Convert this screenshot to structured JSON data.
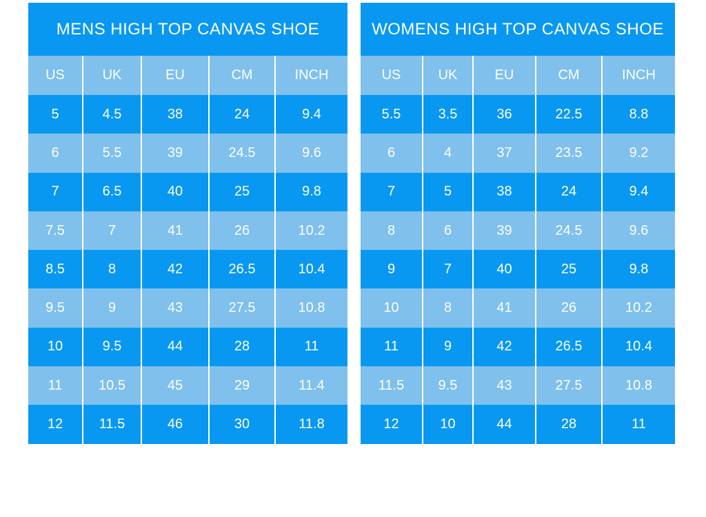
{
  "colors": {
    "row_dark": "#0998f1",
    "row_light": "#7fc0ec",
    "text": "#ffffff",
    "background": "#ffffff"
  },
  "tables": [
    {
      "title": "MENS HIGH TOP CANVAS SHOE",
      "columns": [
        "US",
        "UK",
        "EU",
        "CM",
        "INCH"
      ],
      "rows": [
        [
          "5",
          "4.5",
          "38",
          "24",
          "9.4"
        ],
        [
          "6",
          "5.5",
          "39",
          "24.5",
          "9.6"
        ],
        [
          "7",
          "6.5",
          "40",
          "25",
          "9.8"
        ],
        [
          "7.5",
          "7",
          "41",
          "26",
          "10.2"
        ],
        [
          "8.5",
          "8",
          "42",
          "26.5",
          "10.4"
        ],
        [
          "9.5",
          "9",
          "43",
          "27.5",
          "10.8"
        ],
        [
          "10",
          "9.5",
          "44",
          "28",
          "11"
        ],
        [
          "11",
          "10.5",
          "45",
          "29",
          "11.4"
        ],
        [
          "12",
          "11.5",
          "46",
          "30",
          "11.8"
        ]
      ]
    },
    {
      "title": "WOMENS HIGH TOP CANVAS SHOE",
      "columns": [
        "US",
        "UK",
        "EU",
        "CM",
        "INCH"
      ],
      "rows": [
        [
          "5.5",
          "3.5",
          "36",
          "22.5",
          "8.8"
        ],
        [
          "6",
          "4",
          "37",
          "23.5",
          "9.2"
        ],
        [
          "7",
          "5",
          "38",
          "24",
          "9.4"
        ],
        [
          "8",
          "6",
          "39",
          "24.5",
          "9.6"
        ],
        [
          "9",
          "7",
          "40",
          "25",
          "9.8"
        ],
        [
          "10",
          "8",
          "41",
          "26",
          "10.2"
        ],
        [
          "11",
          "9",
          "42",
          "26.5",
          "10.4"
        ],
        [
          "11.5",
          "9.5",
          "43",
          "27.5",
          "10.8"
        ],
        [
          "12",
          "10",
          "44",
          "28",
          "11"
        ]
      ]
    }
  ]
}
